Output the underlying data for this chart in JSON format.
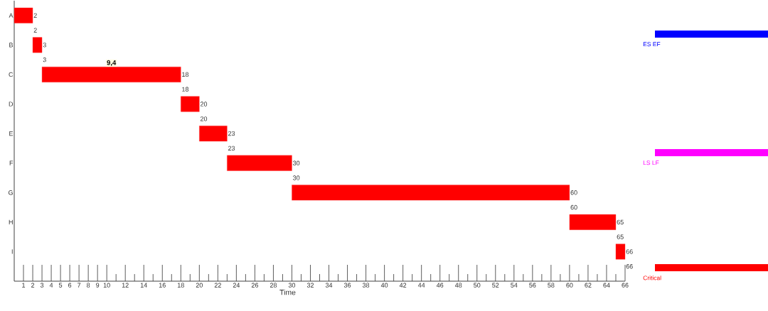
{
  "chart_data": {
    "type": "bar",
    "orientation": "horizontal",
    "xlabel": "Time",
    "categories": [
      "A",
      "B",
      "C",
      "D",
      "E",
      "F",
      "G",
      "H",
      "I"
    ],
    "series": [
      {
        "name": "ES EF",
        "color": "#0000ff",
        "values": [
          null,
          null,
          null,
          null,
          null,
          null,
          null,
          null,
          null
        ]
      },
      {
        "name": "LS LF",
        "color": "#ff00ff",
        "values": [
          null,
          null,
          null,
          null,
          null,
          null,
          null,
          null,
          null
        ]
      },
      {
        "name": "Critical",
        "color": "#ff0000",
        "base": [
          0,
          2,
          3,
          18,
          20,
          23,
          30,
          60,
          65
        ],
        "values": [
          2,
          1,
          15,
          2,
          3,
          7,
          30,
          5,
          1
        ]
      }
    ],
    "xlim": [
      0,
      66
    ],
    "xticks": [
      1,
      2,
      3,
      4,
      5,
      6,
      7,
      8,
      9,
      10,
      {
        "value": 11,
        "label": null
      },
      12,
      {
        "value": 13,
        "label": null
      },
      14,
      {
        "value": 15,
        "label": null
      },
      16,
      {
        "value": 17,
        "label": null
      },
      18,
      {
        "value": 19,
        "label": null
      },
      20,
      {
        "value": 21,
        "label": null
      },
      22,
      {
        "value": 23,
        "label": null
      },
      24,
      {
        "value": 25,
        "label": null
      },
      26,
      {
        "value": 27,
        "label": null
      },
      28,
      {
        "value": 29,
        "label": null
      },
      30,
      {
        "value": 31,
        "label": null
      },
      32,
      {
        "value": 33,
        "label": null
      },
      34,
      {
        "value": 35,
        "label": null
      },
      36,
      {
        "value": 37,
        "label": null
      },
      38,
      {
        "value": 39,
        "label": null
      },
      40,
      {
        "value": 41,
        "label": null
      },
      42,
      {
        "value": 43,
        "label": null
      },
      44,
      {
        "value": 45,
        "label": null
      },
      46,
      {
        "value": 47,
        "label": null
      },
      48,
      {
        "value": 49,
        "label": null
      },
      50,
      {
        "value": 51,
        "label": null
      },
      52,
      {
        "value": 53,
        "label": null
      },
      54,
      {
        "value": 55,
        "label": null
      },
      56,
      {
        "value": 57,
        "label": null
      },
      58,
      {
        "value": 59,
        "label": null
      },
      60,
      {
        "value": 61,
        "label": null
      },
      62,
      {
        "value": 63,
        "label": null
      },
      64,
      {
        "value": 65,
        "label": null
      },
      66
    ],
    "annotations": [
      {
        "text": "2",
        "x": 2,
        "y": "A"
      },
      {
        "text": "2",
        "x": 2,
        "y": "B"
      },
      {
        "text": "3",
        "x": 3,
        "y": "B"
      },
      {
        "text": "3",
        "x": 3,
        "y": "C"
      },
      {
        "text": "18",
        "x": 18,
        "y": "C"
      },
      {
        "text": "18",
        "x": 18,
        "y": "D"
      },
      {
        "text": "20",
        "x": 20,
        "y": "D"
      },
      {
        "text": "20",
        "x": 20,
        "y": "E"
      },
      {
        "text": "23",
        "x": 23,
        "y": "E"
      },
      {
        "text": "23",
        "x": 23,
        "y": "F"
      },
      {
        "text": "30",
        "x": 30,
        "y": "F"
      },
      {
        "text": "30",
        "x": 30,
        "y": "G"
      },
      {
        "text": "60",
        "x": 60,
        "y": "G"
      },
      {
        "text": "60",
        "x": 60,
        "y": "H"
      },
      {
        "text": "65",
        "x": 65,
        "y": "H"
      },
      {
        "text": "65",
        "x": 65,
        "y": "I"
      },
      {
        "text": "66",
        "x": 66,
        "y": "I"
      },
      "**9,4**",
      "66"
    ],
    "legend": "right"
  }
}
